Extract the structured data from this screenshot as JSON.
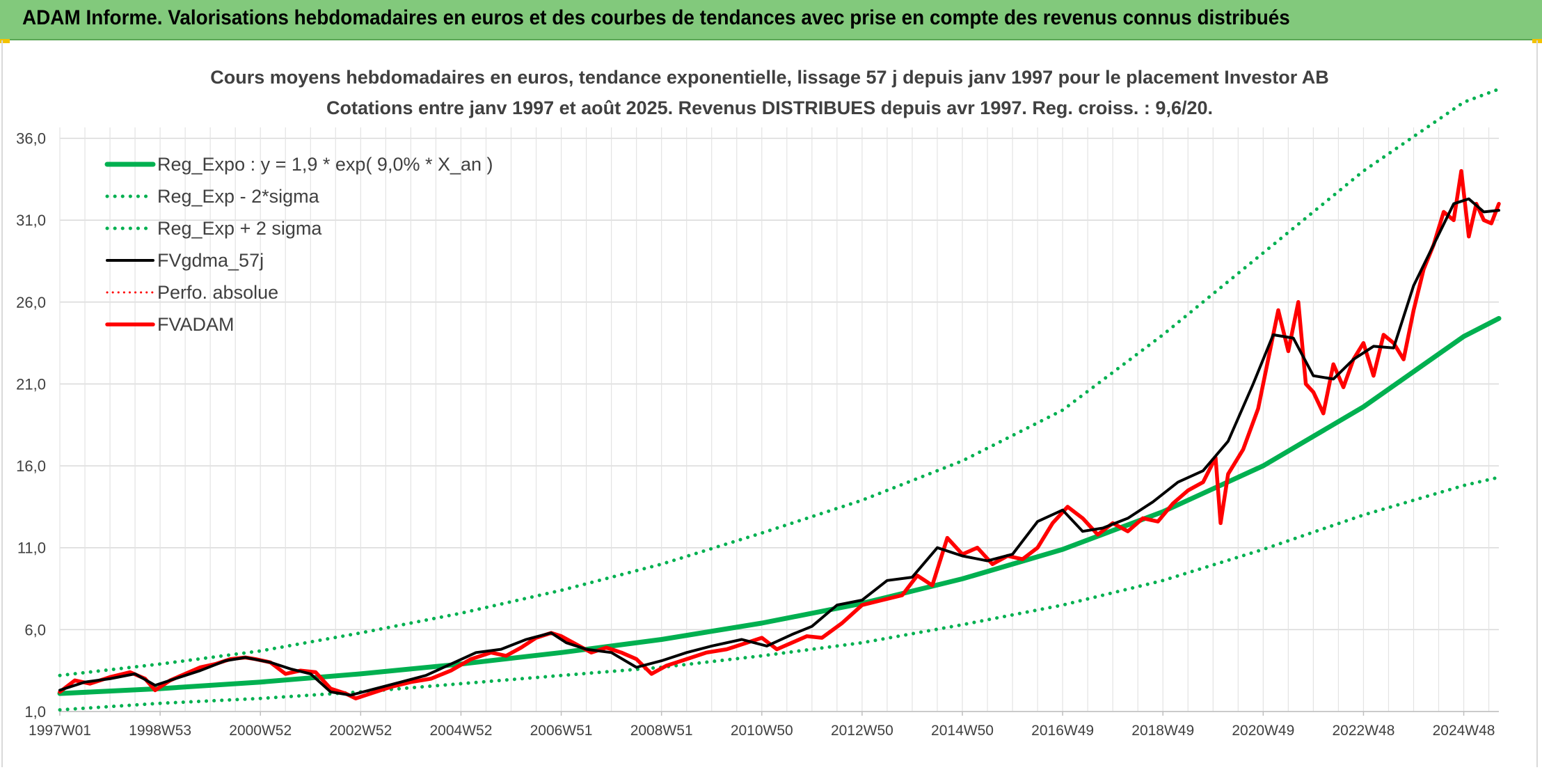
{
  "header": {
    "title": "ADAM Informe. Valorisations hebdomadaires en euros et des courbes de tendances avec prise en compte des revenus connus distribués"
  },
  "chart_data": {
    "type": "line",
    "title": "Cours moyens hebdomadaires en euros, tendance exponentielle, lissage 57 j depuis janv 1997 pour le placement Investor AB",
    "subtitle": "Cotations entre janv 1997 et août 2025. Revenus DISTRIBUES depuis avr 1997. Reg. croiss. : 9,6/20.",
    "xlabel": "",
    "ylabel": "",
    "ylim": [
      1.0,
      39.0
    ],
    "yticks": [
      "1,0",
      "6,0",
      "11,0",
      "16,0",
      "21,0",
      "26,0",
      "31,0",
      "36,0"
    ],
    "xlim": [
      1997.0,
      2025.7
    ],
    "xticks": [
      "1997W01",
      "1998W53",
      "2000W52",
      "2002W52",
      "2004W52",
      "2006W51",
      "2008W51",
      "2010W50",
      "2012W50",
      "2014W50",
      "2016W49",
      "2018W49",
      "2020W49",
      "2022W48",
      "2024W48"
    ],
    "xtick_years": [
      1997.0,
      1999.0,
      2001.0,
      2003.0,
      2005.0,
      2007.0,
      2009.0,
      2011.0,
      2013.0,
      2015.0,
      2017.0,
      2019.0,
      2021.0,
      2023.0,
      2025.0
    ],
    "grid": true,
    "legend_position": "top-left",
    "series": [
      {
        "name": "Reg_Expo : y = 1,9 * exp( 9,0% *  X_an )",
        "color": "#00b050",
        "style": "solid",
        "x": [
          1997,
          1999,
          2001,
          2003,
          2005,
          2007,
          2009,
          2011,
          2013,
          2015,
          2017,
          2019,
          2021,
          2023,
          2025,
          2025.7
        ],
        "y": [
          2.1,
          2.4,
          2.8,
          3.3,
          3.9,
          4.6,
          5.4,
          6.4,
          7.6,
          9.1,
          10.9,
          13.2,
          16.0,
          19.6,
          23.9,
          25.0
        ]
      },
      {
        "name": "Reg_Exp - 2*sigma",
        "color": "#00b050",
        "style": "dotted",
        "x": [
          1997,
          1999,
          2001,
          2003,
          2005,
          2007,
          2009,
          2011,
          2013,
          2015,
          2017,
          2019,
          2021,
          2023,
          2025,
          2025.7
        ],
        "y": [
          1.1,
          1.5,
          1.8,
          2.2,
          2.7,
          3.2,
          3.7,
          4.4,
          5.2,
          6.3,
          7.5,
          9.0,
          10.9,
          13.0,
          14.8,
          15.3
        ]
      },
      {
        "name": "Reg_Exp + 2 sigma",
        "color": "#00b050",
        "style": "dotted",
        "x": [
          1997,
          1999,
          2001,
          2003,
          2005,
          2007,
          2009,
          2011,
          2013,
          2015,
          2017,
          2019,
          2021,
          2023,
          2025,
          2025.7
        ],
        "y": [
          3.2,
          3.9,
          4.7,
          5.8,
          7.0,
          8.4,
          10.0,
          11.9,
          13.9,
          16.3,
          19.4,
          24.0,
          29.0,
          34.0,
          38.2,
          39.0
        ]
      },
      {
        "name": "FVgdma_57j",
        "color": "#000000",
        "style": "solid",
        "x": [
          1997.0,
          1997.5,
          1998.0,
          1998.5,
          1998.9,
          1999.3,
          1999.8,
          2000.3,
          2000.7,
          2001.2,
          2001.6,
          2002.0,
          2002.4,
          2002.8,
          2003.3,
          2003.8,
          2004.3,
          2004.8,
          2005.3,
          2005.8,
          2006.3,
          2006.8,
          2007.1,
          2007.5,
          2008.0,
          2008.5,
          2009.0,
          2009.5,
          2010.0,
          2010.6,
          2011.1,
          2011.6,
          2012.0,
          2012.5,
          2013.0,
          2013.5,
          2014.0,
          2014.5,
          2015.0,
          2015.5,
          2016.0,
          2016.5,
          2017.0,
          2017.4,
          2017.8,
          2018.3,
          2018.8,
          2019.3,
          2019.8,
          2020.3,
          2020.8,
          2021.2,
          2021.6,
          2022.0,
          2022.4,
          2022.8,
          2023.2,
          2023.6,
          2024.0,
          2024.4,
          2024.8,
          2025.1,
          2025.4,
          2025.7
        ],
        "y": [
          2.3,
          2.8,
          3.0,
          3.3,
          2.6,
          3.0,
          3.5,
          4.1,
          4.3,
          4.0,
          3.6,
          3.3,
          2.2,
          2.0,
          2.4,
          2.8,
          3.2,
          3.9,
          4.6,
          4.8,
          5.4,
          5.8,
          5.2,
          4.8,
          4.6,
          3.7,
          4.1,
          4.6,
          5.0,
          5.4,
          5.0,
          5.7,
          6.2,
          7.5,
          7.8,
          9.0,
          9.2,
          11.0,
          10.5,
          10.2,
          10.6,
          12.6,
          13.3,
          12.0,
          12.2,
          12.8,
          13.8,
          15.0,
          15.7,
          17.5,
          21.0,
          24.0,
          23.8,
          21.5,
          21.3,
          22.5,
          23.3,
          23.2,
          27.0,
          29.5,
          32.0,
          32.3,
          31.5,
          31.6
        ]
      },
      {
        "name": "Perfo. absolue",
        "color": "#ff0000",
        "style": "dotted",
        "x": [],
        "y": []
      },
      {
        "name": "FVADAM",
        "color": "#ff0000",
        "style": "solid",
        "x": [
          1997.0,
          1997.3,
          1997.6,
          1998.0,
          1998.4,
          1998.7,
          1998.9,
          1999.2,
          1999.5,
          1999.8,
          2000.1,
          2000.4,
          2000.7,
          2000.9,
          2001.2,
          2001.5,
          2001.8,
          2002.1,
          2002.4,
          2002.7,
          2002.9,
          2003.2,
          2003.6,
          2004.0,
          2004.4,
          2004.8,
          2005.2,
          2005.6,
          2005.9,
          2006.2,
          2006.5,
          2006.8,
          2007.0,
          2007.3,
          2007.6,
          2007.9,
          2008.2,
          2008.5,
          2008.8,
          2009.1,
          2009.5,
          2009.9,
          2010.3,
          2010.7,
          2011.0,
          2011.3,
          2011.6,
          2011.9,
          2012.2,
          2012.6,
          2013.0,
          2013.4,
          2013.8,
          2014.1,
          2014.4,
          2014.7,
          2015.0,
          2015.3,
          2015.6,
          2015.9,
          2016.2,
          2016.5,
          2016.8,
          2017.1,
          2017.4,
          2017.7,
          2018.0,
          2018.3,
          2018.6,
          2018.9,
          2019.2,
          2019.5,
          2019.8,
          2020.05,
          2020.15,
          2020.3,
          2020.6,
          2020.9,
          2021.1,
          2021.3,
          2021.5,
          2021.7,
          2021.85,
          2022.0,
          2022.2,
          2022.4,
          2022.6,
          2022.8,
          2023.0,
          2023.2,
          2023.4,
          2023.6,
          2023.8,
          2024.0,
          2024.2,
          2024.4,
          2024.6,
          2024.8,
          2024.95,
          2025.1,
          2025.25,
          2025.4,
          2025.55,
          2025.7
        ],
        "y": [
          2.2,
          2.9,
          2.7,
          3.1,
          3.4,
          3.0,
          2.3,
          2.9,
          3.3,
          3.7,
          3.9,
          4.2,
          4.3,
          4.2,
          4.0,
          3.3,
          3.5,
          3.4,
          2.4,
          2.1,
          1.8,
          2.1,
          2.5,
          2.8,
          3.0,
          3.5,
          4.2,
          4.6,
          4.4,
          4.9,
          5.5,
          5.8,
          5.6,
          5.1,
          4.6,
          4.9,
          4.6,
          4.2,
          3.3,
          3.8,
          4.2,
          4.6,
          4.8,
          5.2,
          5.5,
          4.8,
          5.2,
          5.6,
          5.5,
          6.4,
          7.5,
          7.8,
          8.1,
          9.3,
          8.7,
          11.6,
          10.6,
          11.0,
          10.0,
          10.5,
          10.3,
          11.0,
          12.5,
          13.5,
          12.8,
          11.8,
          12.5,
          12.0,
          12.8,
          12.6,
          13.7,
          14.5,
          15.0,
          16.5,
          12.5,
          15.5,
          17.0,
          19.5,
          22.5,
          25.5,
          23.0,
          26.0,
          21.0,
          20.5,
          19.2,
          22.2,
          20.8,
          22.5,
          23.5,
          21.5,
          24.0,
          23.5,
          22.5,
          25.5,
          28.0,
          29.5,
          31.5,
          31.0,
          34.0,
          30.0,
          32.0,
          31.0,
          30.8,
          32.0
        ]
      }
    ]
  }
}
